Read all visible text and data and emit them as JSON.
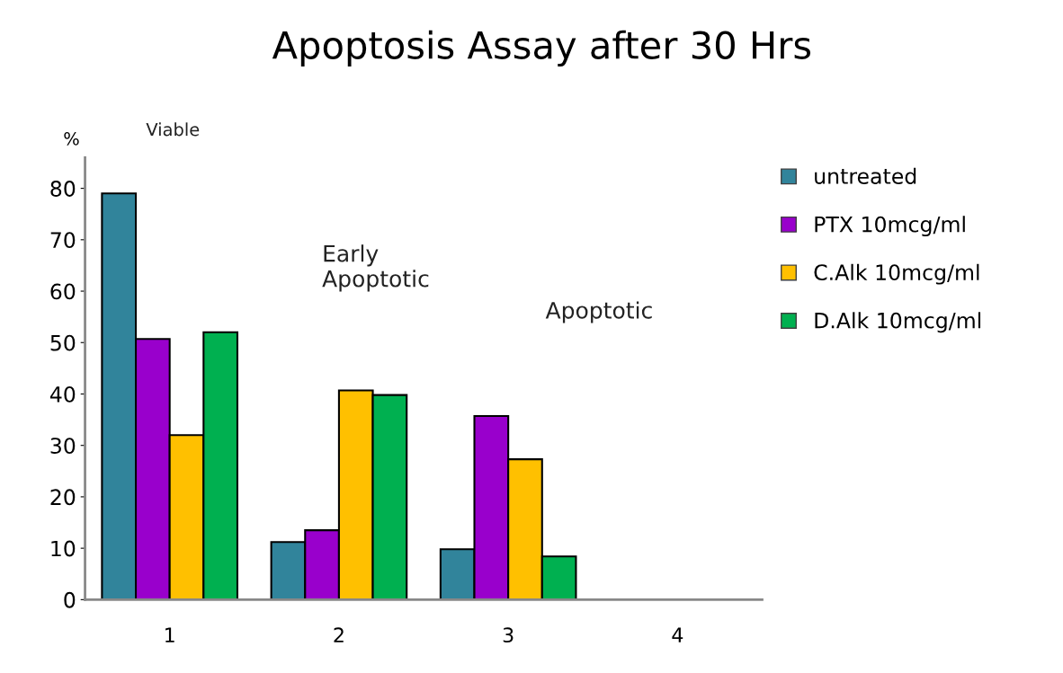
{
  "chart_data": {
    "type": "bar",
    "title": "Apoptosis Assay after 30 Hrs",
    "ylabel": "%",
    "categories": [
      "1",
      "2",
      "3",
      "4"
    ],
    "series": [
      {
        "name": "untreated",
        "color": "#31849b",
        "values": [
          79,
          11.2,
          9.8,
          null
        ]
      },
      {
        "name": "PTX 10mcg/ml",
        "color": "#9900cc",
        "values": [
          50.7,
          13.5,
          35.7,
          null
        ]
      },
      {
        "name": "C.Alk 10mcg/ml",
        "color": "#ffc000",
        "values": [
          32.0,
          40.7,
          27.3,
          null
        ]
      },
      {
        "name": "D.Alk 10mcg/ml",
        "color": "#00b050",
        "values": [
          52.0,
          39.8,
          8.4,
          null
        ]
      }
    ],
    "annotations": [
      "Viable",
      "Early\nApoptotic",
      "Apoptotic"
    ],
    "ylim": [
      0,
      86
    ],
    "yticks": [
      0,
      10,
      20,
      30,
      40,
      50,
      60,
      70,
      80
    ],
    "grid": false,
    "legend": "right"
  }
}
